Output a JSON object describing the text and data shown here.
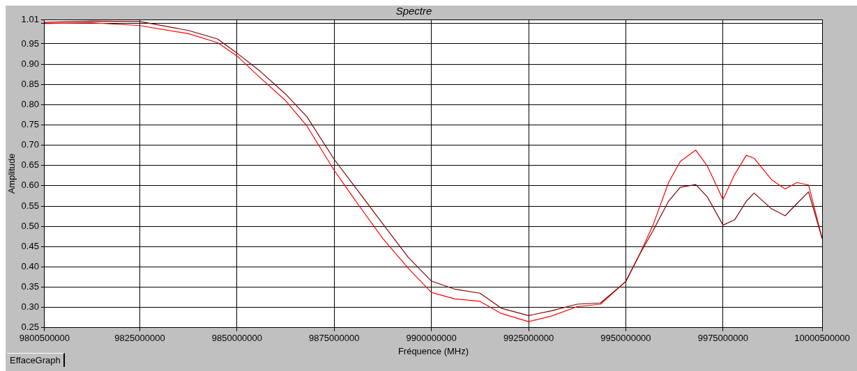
{
  "chart_data": {
    "type": "line",
    "title": "Spectre",
    "xlabel": "Fréquence (MHz)",
    "ylabel": "Amplitude",
    "annotations": [
      "EffaceGraph"
    ],
    "x": [
      9800500000,
      9812500000,
      9825000000,
      9837500000,
      9845000000,
      9850000000,
      9856000000,
      9862500000,
      9868000000,
      9875000000,
      9881000000,
      9887500000,
      9894000000,
      9900000000,
      9906000000,
      9912500000,
      9918000000,
      9925000000,
      9931000000,
      9937500000,
      9943500000,
      9950000000,
      9953500000,
      9957000000,
      9961000000,
      9964000000,
      9968000000,
      9971000000,
      9975000000,
      9978000000,
      9981000000,
      9983000000,
      9987500000,
      9991000000,
      9994000000,
      9997000000,
      10000500000
    ],
    "series": [
      {
        "color": "#800000",
        "values": [
          1.003,
          1.006,
          1.005,
          0.983,
          0.962,
          0.927,
          0.882,
          0.826,
          0.77,
          0.665,
          0.589,
          0.506,
          0.424,
          0.365,
          0.345,
          0.335,
          0.298,
          0.28,
          0.292,
          0.308,
          0.311,
          0.364,
          0.43,
          0.489,
          0.562,
          0.596,
          0.603,
          0.572,
          0.503,
          0.516,
          0.562,
          0.582,
          0.543,
          0.526,
          0.556,
          0.585,
          0.47
        ]
      },
      {
        "color": "#ff0000",
        "values": [
          1.0,
          1.002,
          0.995,
          0.975,
          0.953,
          0.92,
          0.866,
          0.81,
          0.747,
          0.638,
          0.556,
          0.47,
          0.397,
          0.337,
          0.321,
          0.315,
          0.285,
          0.265,
          0.279,
          0.302,
          0.308,
          0.364,
          0.43,
          0.503,
          0.608,
          0.66,
          0.688,
          0.648,
          0.566,
          0.628,
          0.675,
          0.668,
          0.615,
          0.592,
          0.608,
          0.602,
          0.47
        ]
      }
    ],
    "xlim": [
      9800500000,
      10000500000
    ],
    "xticks": [
      9800500000,
      9825000000,
      9850000000,
      9875000000,
      9900000000,
      9925000000,
      9950000000,
      9975000000,
      10000500000
    ],
    "ylim": [
      0.25,
      1.01
    ],
    "yticks": [
      {
        "value": 0.25,
        "label": "0.25"
      },
      {
        "value": 0.3,
        "label": "0.30"
      },
      {
        "value": 0.35,
        "label": "0.35"
      },
      {
        "value": 0.4,
        "label": "0.40"
      },
      {
        "value": 0.45,
        "label": "0.45"
      },
      {
        "value": 0.5,
        "label": "0.50"
      },
      {
        "value": 0.55,
        "label": "0.55"
      },
      {
        "value": 0.6,
        "label": "0.60"
      },
      {
        "value": 0.65,
        "label": "0.65"
      },
      {
        "value": 0.7,
        "label": "0.70"
      },
      {
        "value": 0.75,
        "label": "0.75"
      },
      {
        "value": 0.8,
        "label": "0.80"
      },
      {
        "value": 0.85,
        "label": "0.85"
      },
      {
        "value": 0.9,
        "label": "0.90"
      },
      {
        "value": 0.95,
        "label": "0.95"
      },
      {
        "value": 1.0,
        "label": null
      },
      {
        "value": 1.01,
        "label": "1.01"
      }
    ],
    "grid": true,
    "marker": "none",
    "line_style": "solid"
  }
}
